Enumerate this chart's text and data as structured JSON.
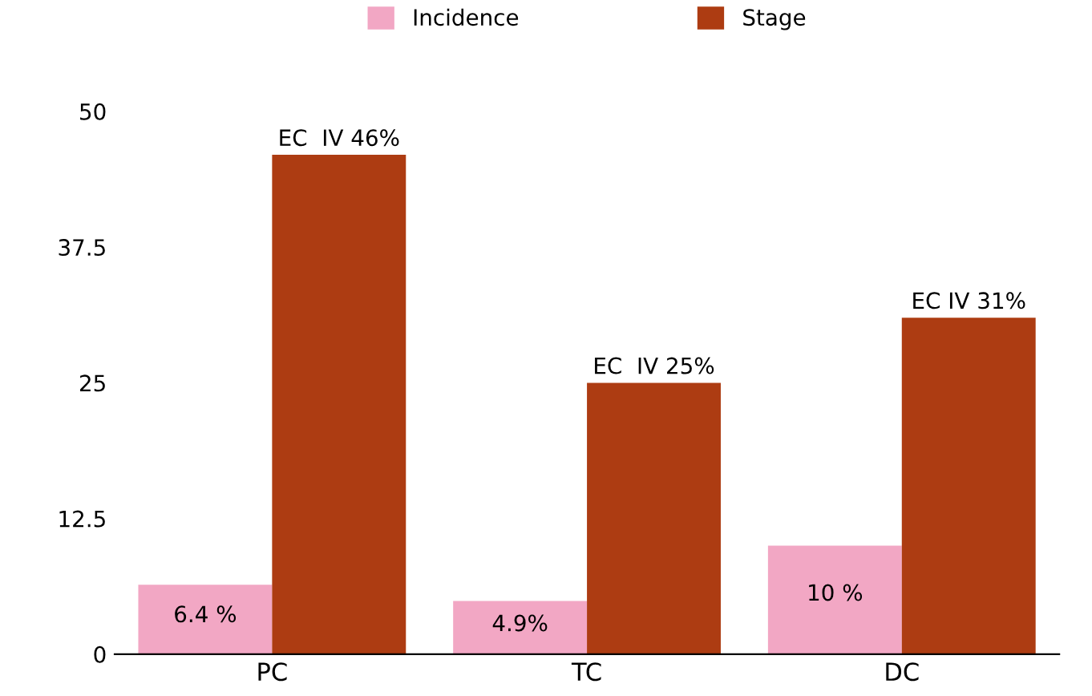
{
  "chart_data": {
    "type": "bar",
    "categories": [
      "PC",
      "TC",
      "DC"
    ],
    "series": [
      {
        "name": "Incidence",
        "color": "#f2a7c4",
        "values": [
          6.4,
          4.9,
          10
        ],
        "value_labels": [
          "6.4 %",
          "4.9%",
          "10 %"
        ]
      },
      {
        "name": "Stage",
        "color": "#ad3c12",
        "values": [
          46,
          25,
          31
        ],
        "value_labels": [
          "EC  IV 46%",
          "EC  IV 25%",
          "EC IV 31%"
        ]
      }
    ],
    "ylim": [
      0,
      50
    ],
    "yticks": [
      0,
      12.5,
      25,
      37.5,
      50
    ],
    "grid": false,
    "legend": "top"
  }
}
